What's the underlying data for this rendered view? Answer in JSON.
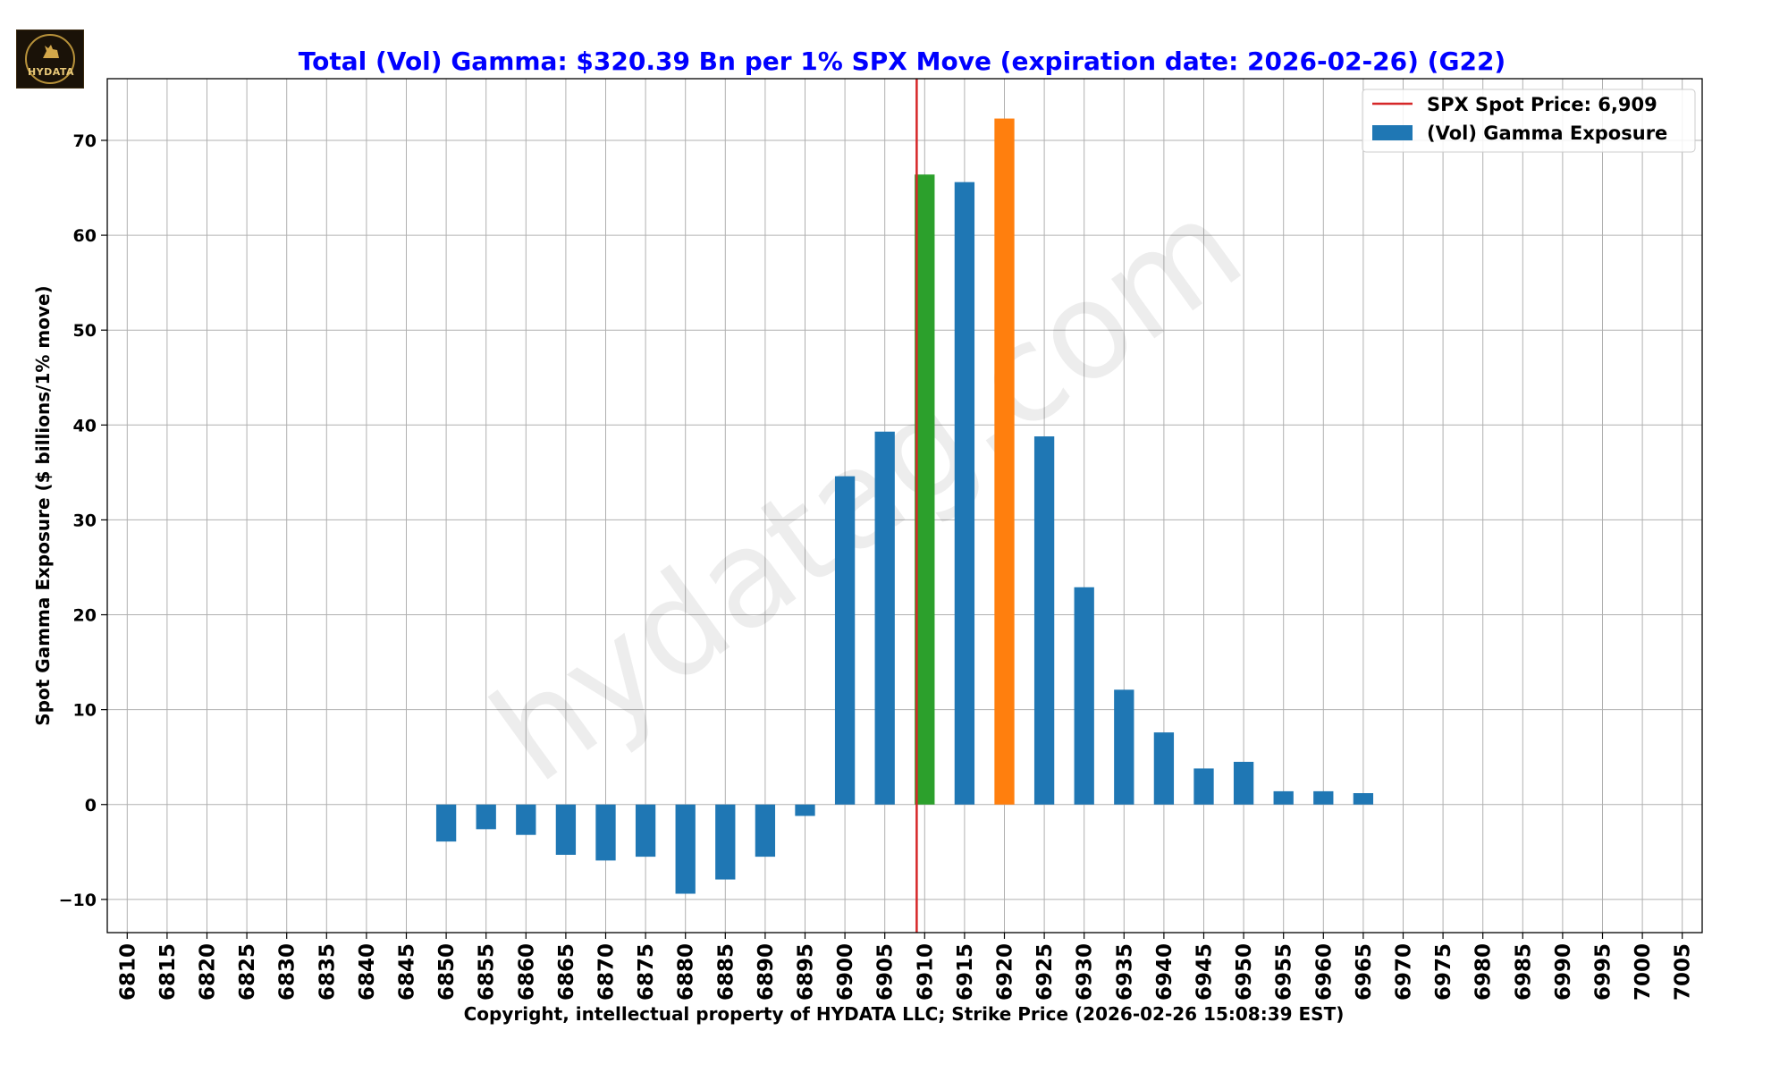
{
  "logo": {
    "text": "HYDATA"
  },
  "watermark": "hydatag.com",
  "chart_data": {
    "type": "bar",
    "title": "Total (Vol) Gamma: $320.39 Bn per 1% SPX Move (expiration date: 2026-02-26) (G22)",
    "xlabel": "Copyright, intellectual property of HYDATA LLC; Strike Price (2026-02-26 15:08:39 EST)",
    "ylabel": "Spot Gamma Exposure ($ billions/1% move)",
    "categories": [
      "6810",
      "6815",
      "6820",
      "6825",
      "6830",
      "6835",
      "6840",
      "6845",
      "6850",
      "6855",
      "6860",
      "6865",
      "6870",
      "6875",
      "6880",
      "6885",
      "6890",
      "6895",
      "6900",
      "6905",
      "6910",
      "6915",
      "6920",
      "6925",
      "6930",
      "6935",
      "6940",
      "6945",
      "6950",
      "6955",
      "6960",
      "6965",
      "6970",
      "6975",
      "6980",
      "6985",
      "6990",
      "6995",
      "7000",
      "7005"
    ],
    "values": [
      0,
      0,
      0,
      0,
      0,
      0,
      0,
      0,
      -3.9,
      -2.6,
      -3.2,
      -5.3,
      -5.9,
      -5.5,
      -9.4,
      -7.9,
      -5.5,
      -1.2,
      34.6,
      39.3,
      66.4,
      65.6,
      72.3,
      38.8,
      22.9,
      12.1,
      7.6,
      3.8,
      4.5,
      1.4,
      1.4,
      1.2,
      0,
      0,
      0,
      0,
      0,
      0,
      0,
      0
    ],
    "bar_colors": {
      "default": "#1f77b4",
      "6910": "#2ca02c",
      "6920": "#ff7f0e"
    },
    "ylim": [
      -13.5,
      76.5
    ],
    "yticks": [
      -10,
      0,
      10,
      20,
      30,
      40,
      50,
      60,
      70
    ],
    "spot_price": 6909,
    "spot_color": "#d62728",
    "grid": true,
    "legend": {
      "position": "top-right",
      "entries": [
        {
          "label": "SPX Spot Price: 6,909",
          "kind": "line",
          "color": "#d62728"
        },
        {
          "label": "(Vol) Gamma Exposure",
          "kind": "patch",
          "color": "#1f77b4"
        }
      ]
    },
    "title_color": "#0000ff"
  }
}
